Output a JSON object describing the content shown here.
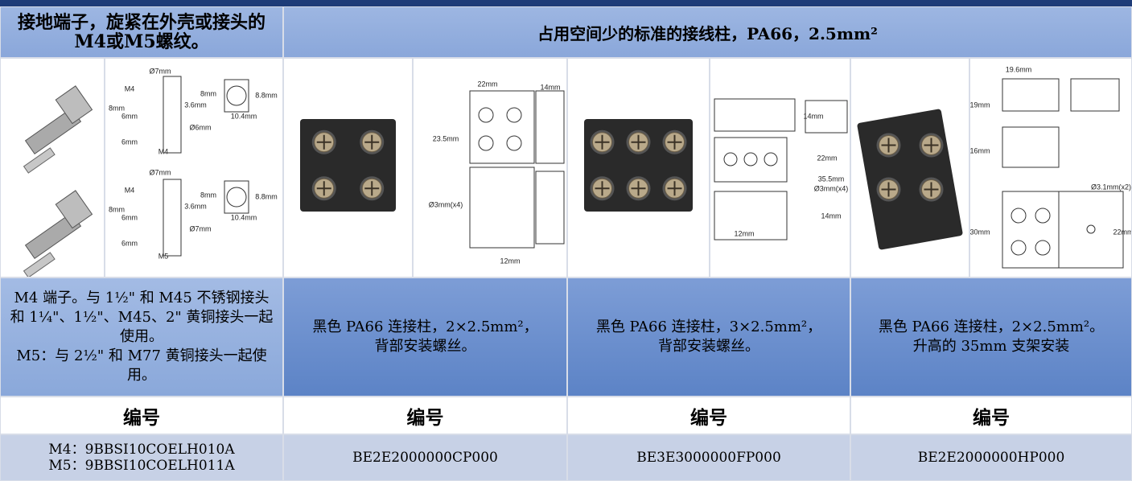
{
  "header": {
    "left": "接地端子，旋紧在外壳或接头的M4或M5螺纹。",
    "right": "占用空间少的标准的接线柱，PA66，2.5mm²"
  },
  "drawings": [
    {
      "labels": [
        "Ø7mm",
        "M4",
        "8mm",
        "3.6mm",
        "8mm",
        "6mm",
        "Ø6mm",
        "6mm",
        "M4",
        "8.8mm",
        "10.4mm",
        "Ø7mm",
        "M4",
        "8mm",
        "3.6mm",
        "8mm",
        "6mm",
        "Ø7mm",
        "6mm",
        "M5",
        "8.8mm",
        "10.4mm"
      ]
    },
    {
      "labels": [
        "22mm",
        "14mm",
        "23.5mm",
        "Ø3mm(x4)",
        "12mm"
      ]
    },
    {
      "labels": [
        "14mm",
        "22mm",
        "35.5mm",
        "Ø3mm(x4)",
        "14mm",
        "12mm"
      ]
    },
    {
      "labels": [
        "19.6mm",
        "19mm",
        "16mm",
        "Ø3.1mm(x2)",
        "30mm",
        "22mm"
      ]
    }
  ],
  "descriptions": [
    [
      "M4 端子。与 1½\" 和 M45 不锈钢接头和 1¼\"、1½\"、M45、2\" 黄铜接头一起使用。",
      "M5：与 2½\" 和 M77 黄铜接头一起使用。"
    ],
    [
      "黑色 PA66 连接柱，2×2.5mm²，",
      "背部安装螺丝。"
    ],
    [
      "黑色 PA66 连接柱，3×2.5mm²，",
      "背部安装螺丝。"
    ],
    [
      "黑色 PA66 连接柱，2×2.5mm²。",
      "升高的 35mm 支架安装"
    ]
  ],
  "code_headings": [
    "编号",
    "编号",
    "编号",
    "编号"
  ],
  "codes": [
    [
      "M4：9BBSI10COELH010A",
      "M5：9BBSI10COELH011A"
    ],
    [
      "BE2E2000000CP000"
    ],
    [
      "BE3E3000000FP000"
    ],
    [
      "BE2E2000000HP000"
    ]
  ]
}
